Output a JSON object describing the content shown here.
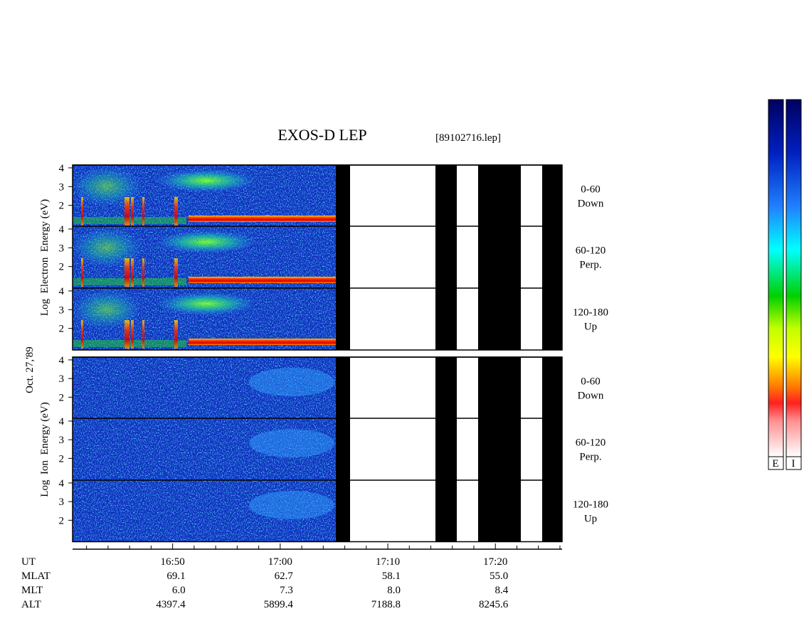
{
  "title": "EXOS-D LEP",
  "file": "[89102716.lep]",
  "date": "Oct. 27,'89",
  "x_axis": {
    "xlim": [
      40.7,
      86.2
    ],
    "xticks": [
      {
        "value": 50,
        "label": "16:50"
      },
      {
        "value": 60,
        "label": "17:00"
      },
      {
        "value": 70,
        "label": "17:10"
      },
      {
        "value": 80,
        "label": "17:20"
      }
    ],
    "minor_ticks": [
      42,
      44,
      46,
      48,
      52,
      54,
      56,
      58,
      62,
      64,
      66,
      68,
      72,
      74,
      76,
      78,
      82,
      84,
      86
    ]
  },
  "ephemeris": [
    {
      "name": "UT"
    },
    {
      "name": "MLAT",
      "values": [
        "69.1",
        "62.7",
        "58.1",
        "55.0"
      ]
    },
    {
      "name": "MLT",
      "values": [
        "6.0",
        "7.3",
        "8.0",
        "8.4"
      ]
    },
    {
      "name": "ALT",
      "values": [
        "4397.4",
        "5899.4",
        "7188.8",
        "8245.6"
      ]
    }
  ],
  "electron": {
    "ylabel": "Log  Electron  Energy (eV)",
    "ylim": [
      0.85,
      4.15
    ],
    "yticks": [
      2,
      3,
      4
    ],
    "panels": [
      {
        "pitch": "0-60",
        "direction": "Down"
      },
      {
        "pitch": "60-120",
        "direction": "Perp."
      },
      {
        "pitch": "120-180",
        "direction": "Up"
      }
    ]
  },
  "ion": {
    "ylabel": "Log  Ion  Energy (eV)",
    "ylim": [
      0.85,
      4.15
    ],
    "yticks": [
      2,
      3,
      4
    ],
    "panels": [
      {
        "pitch": "0-60",
        "direction": "Down"
      },
      {
        "pitch": "60-120",
        "direction": "Perp."
      },
      {
        "pitch": "120-180",
        "direction": "Up"
      }
    ]
  },
  "colorbar": {
    "labels": [
      "E",
      "I"
    ]
  }
}
